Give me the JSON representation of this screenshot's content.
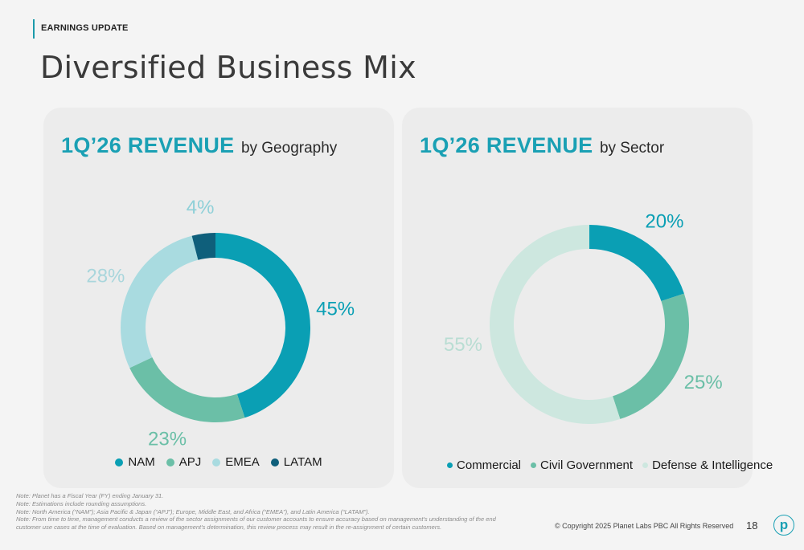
{
  "header": {
    "section_tag": "EARNINGS UPDATE",
    "title": "Diversified Business Mix"
  },
  "chart_data": [
    {
      "type": "pie",
      "variant": "donut",
      "title": "1Q’26 REVENUE",
      "subtitle": "by Geography",
      "legend_position": "bottom",
      "series": [
        {
          "name": "NAM",
          "value": 45,
          "label": "45%",
          "color": "#0a9fb4"
        },
        {
          "name": "APJ",
          "value": 23,
          "label": "23%",
          "color": "#6bbfa7"
        },
        {
          "name": "EMEA",
          "value": 28,
          "label": "28%",
          "color": "#a9dbe0"
        },
        {
          "name": "LATAM",
          "value": 4,
          "label": "4%",
          "color": "#0f5f7b"
        }
      ]
    },
    {
      "type": "pie",
      "variant": "donut",
      "title": "1Q’26 REVENUE",
      "subtitle": "by Sector",
      "legend_position": "bottom",
      "series": [
        {
          "name": "Commercial",
          "value": 20,
          "label": "20%",
          "color": "#0a9fb4"
        },
        {
          "name": "Civil Government",
          "value": 25,
          "label": "25%",
          "color": "#6bbfa7"
        },
        {
          "name": "Defense & Intelligence",
          "value": 55,
          "label": "55%",
          "color": "#cde7df"
        }
      ]
    }
  ],
  "notes": [
    "Note: Planet has a Fiscal Year (FY) ending January 31.",
    "Note: Estimations include rounding assumptions.",
    "Note: North America (“NAM”);  Asia Pacific & Japan (“APJ”); Europe, Middle East, and Africa (“EMEA”), and Latin America (“LATAM”).",
    "Note:  From time to time, management conducts a review of the sector assignments of our customer accounts to ensure accuracy based on management's understanding of the end customer use cases at the time of evaluation. Based on management's determination, this review process may result in the re-assignment of certain customers."
  ],
  "footer": {
    "copyright": "© Copyright 2025 Planet Labs PBC  All Rights Reserved",
    "page_number": "18",
    "logo_letter": "p"
  }
}
